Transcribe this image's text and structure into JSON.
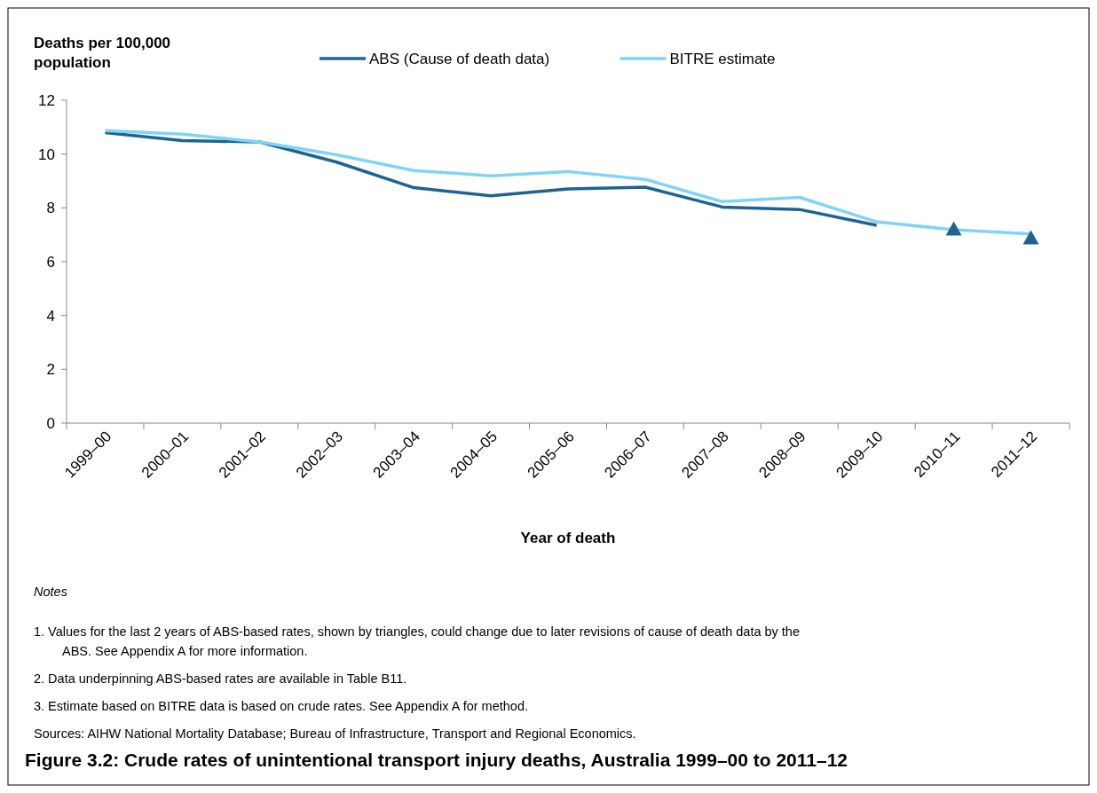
{
  "chart_data": {
    "type": "line",
    "title": "Figure 3.2: Crude rates of unintentional transport injury deaths, Australia 1999–00 to 2011–12",
    "xlabel": "Year of death",
    "ylabel": "Deaths per 100,000 population",
    "categories": [
      "1999–00",
      "2000–01",
      "2001–02",
      "2002–03",
      "2003–04",
      "2004–05",
      "2005–06",
      "2006–07",
      "2007–08",
      "2008–09",
      "2009–10",
      "2010–11",
      "2011–12"
    ],
    "series": [
      {
        "name": "ABS (Cause of death data)",
        "color": "#1f6391",
        "values": [
          10.8,
          10.5,
          10.45,
          9.7,
          8.75,
          8.45,
          8.7,
          8.77,
          8.03,
          7.94,
          7.35,
          null,
          null
        ]
      },
      {
        "name": "BITRE estimate",
        "color": "#7fd4f7",
        "values": [
          10.87,
          10.74,
          10.45,
          9.97,
          9.39,
          9.19,
          9.35,
          9.06,
          8.23,
          8.39,
          7.48,
          7.19,
          7.03
        ]
      },
      {
        "type": "scatter",
        "marker": "triangle",
        "color": "#1f6391",
        "values": [
          null,
          null,
          null,
          null,
          null,
          null,
          null,
          null,
          null,
          null,
          null,
          7.2,
          6.87
        ]
      }
    ],
    "ylim": [
      0,
      12
    ],
    "yticks": [
      0,
      2,
      4,
      6,
      8,
      10,
      12
    ],
    "grid": false,
    "legend": "top",
    "marker": "none",
    "line_style": "solid",
    "annotations": [
      "Notes",
      "1.  Values for the last 2 years of ABS-based rates, shown by triangles, could change due to later revisions of cause of death data by the ABS. See Appendix A for more information.",
      "2.  Data underpinning ABS-based rates are available in Table B11.",
      "3.  Estimate based on BITRE data is based on crude rates. See Appendix A for method.",
      "Sources: AIHW National Mortality Database; Bureau of Infrastructure, Transport and Regional Economics."
    ]
  }
}
